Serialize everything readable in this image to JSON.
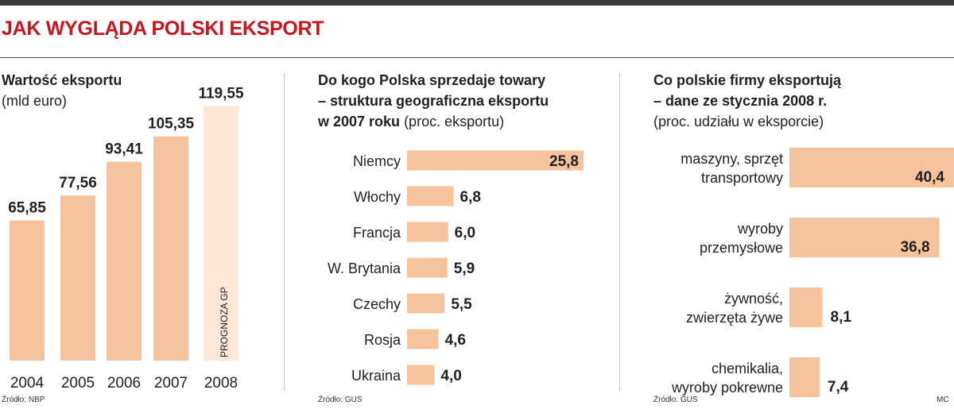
{
  "header": {
    "title": "JAK WYGLĄDA POLSKI EKSPORT"
  },
  "colors": {
    "accent": "#c4161c",
    "bar": "#f6c49c",
    "bar_forecast": "#fde8d8",
    "forecast_text": "#a8a8a8"
  },
  "panels": {
    "export_value": {
      "title": "Wartość eksportu",
      "subtitle": "(mld euro)",
      "source": "Źródło: NBP"
    },
    "geography": {
      "title_line1": "Do kogo Polska sprzedaje towary",
      "title_line2": "– struktura geograficzna eksportu",
      "title_line3_bold": "w 2007 roku",
      "title_line3_rest": " (proc. eksportu)",
      "source": "Źródło: GUS"
    },
    "products": {
      "title_line1": "Co polskie firmy eksportują",
      "title_line2": "– dane ze stycznia 2008 r.",
      "subtitle": "(proc. udziału w eksporcie)",
      "source": "Źródło: GUS",
      "credit": "MC"
    }
  },
  "chart_data": [
    {
      "type": "bar",
      "title": "Wartość eksportu",
      "ylabel": "(mld euro)",
      "categories": [
        "2004",
        "2005",
        "2006",
        "2007",
        "2008"
      ],
      "values": [
        65.85,
        77.56,
        93.41,
        105.35,
        119.55
      ],
      "value_labels": [
        "65,85",
        "77,56",
        "93,41",
        "105,35",
        "119,55"
      ],
      "forecast_index": 4,
      "forecast_label": "PROGNOZA GP",
      "ylim": [
        0,
        120
      ]
    },
    {
      "type": "bar",
      "orientation": "horizontal",
      "title": "Do kogo Polska sprzedaje towary – struktura geograficzna eksportu w 2007 roku (proc. eksportu)",
      "categories": [
        "Niemcy",
        "Włochy",
        "Francja",
        "W. Brytania",
        "Czechy",
        "Rosja",
        "Ukraina"
      ],
      "values": [
        25.8,
        6.8,
        6.0,
        5.9,
        5.5,
        4.6,
        4.0
      ],
      "value_labels": [
        "25,8",
        "6,8",
        "6,0",
        "5,9",
        "5,5",
        "4,6",
        "4,0"
      ]
    },
    {
      "type": "bar",
      "orientation": "horizontal",
      "title": "Co polskie firmy eksportują – dane ze stycznia 2008 r. (proc. udziału w eksporcie)",
      "categories": [
        [
          "maszyny, sprzęt",
          "transportowy"
        ],
        [
          "wyroby",
          "przemysłowe"
        ],
        [
          "żywność,",
          "zwierzęta żywe"
        ],
        [
          "chemikalia,",
          "wyroby pokrewne"
        ]
      ],
      "values": [
        40.4,
        36.8,
        8.1,
        7.4
      ],
      "value_labels": [
        "40,4",
        "36,8",
        "8,1",
        "7,4"
      ]
    }
  ]
}
